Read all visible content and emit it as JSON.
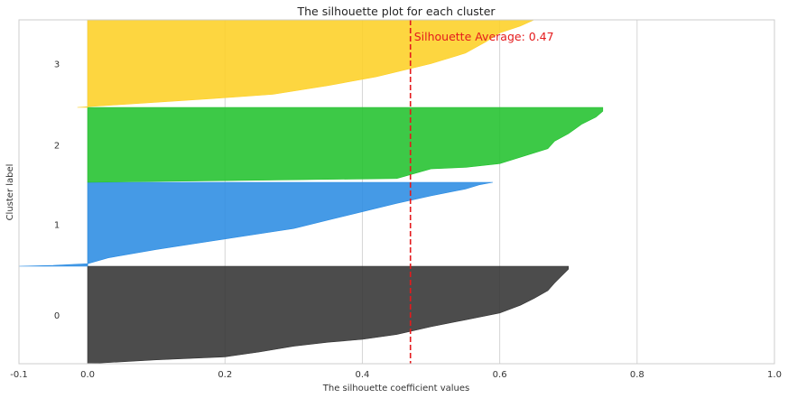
{
  "chart_data": {
    "type": "area",
    "title": "The silhouette plot for each cluster",
    "xlabel": "The silhouette coefficient values",
    "ylabel": "Cluster label",
    "xlim": [
      -0.1,
      1.0
    ],
    "xticks": [
      "-0.1",
      "0.0",
      "0.2",
      "0.4",
      "0.6",
      "0.8",
      "1.0"
    ],
    "xtick_values": [
      -0.1,
      0.0,
      0.2,
      0.4,
      0.6,
      0.8,
      1.0
    ],
    "grid": "vertical",
    "average": 0.47,
    "average_label": "Silhouette Average: 0.47",
    "average_color": "#e41a1c",
    "clusters": [
      {
        "label": "0",
        "color": "#333333",
        "profile": [
          [
            0.0,
            0.0
          ],
          [
            0.1,
            0.04
          ],
          [
            0.2,
            0.07
          ],
          [
            0.25,
            0.12
          ],
          [
            0.3,
            0.18
          ],
          [
            0.35,
            0.22
          ],
          [
            0.4,
            0.25
          ],
          [
            0.45,
            0.3
          ],
          [
            0.5,
            0.38
          ],
          [
            0.55,
            0.45
          ],
          [
            0.6,
            0.52
          ],
          [
            0.63,
            0.6
          ],
          [
            0.65,
            0.67
          ],
          [
            0.67,
            0.75
          ],
          [
            0.68,
            0.83
          ],
          [
            0.69,
            0.9
          ],
          [
            0.7,
            0.97
          ],
          [
            0.7,
            1.0
          ]
        ]
      },
      {
        "label": "1",
        "color": "#2b8ce2",
        "profile": [
          [
            -0.1,
            0.0
          ],
          [
            -0.05,
            0.01
          ],
          [
            0.0,
            0.03
          ],
          [
            0.03,
            0.1
          ],
          [
            0.1,
            0.2
          ],
          [
            0.18,
            0.3
          ],
          [
            0.26,
            0.4
          ],
          [
            0.3,
            0.45
          ],
          [
            0.35,
            0.55
          ],
          [
            0.4,
            0.65
          ],
          [
            0.45,
            0.75
          ],
          [
            0.5,
            0.84
          ],
          [
            0.55,
            0.92
          ],
          [
            0.57,
            0.97
          ],
          [
            0.59,
            1.0
          ]
        ]
      },
      {
        "label": "2",
        "color": "#22c22e",
        "profile": [
          [
            0.0,
            0.0
          ],
          [
            0.45,
            0.05
          ],
          [
            0.5,
            0.18
          ],
          [
            0.55,
            0.2
          ],
          [
            0.6,
            0.25
          ],
          [
            0.67,
            0.45
          ],
          [
            0.68,
            0.55
          ],
          [
            0.7,
            0.65
          ],
          [
            0.72,
            0.78
          ],
          [
            0.74,
            0.87
          ],
          [
            0.75,
            0.95
          ],
          [
            0.75,
            1.0
          ]
        ]
      },
      {
        "label": "3",
        "color": "#fdd026",
        "profile": [
          [
            -0.015,
            0.0
          ],
          [
            0.18,
            0.1
          ],
          [
            0.27,
            0.15
          ],
          [
            0.35,
            0.25
          ],
          [
            0.42,
            0.35
          ],
          [
            0.5,
            0.5
          ],
          [
            0.55,
            0.62
          ],
          [
            0.58,
            0.75
          ],
          [
            0.6,
            0.85
          ],
          [
            0.63,
            0.93
          ],
          [
            0.65,
            1.0
          ]
        ]
      }
    ]
  }
}
